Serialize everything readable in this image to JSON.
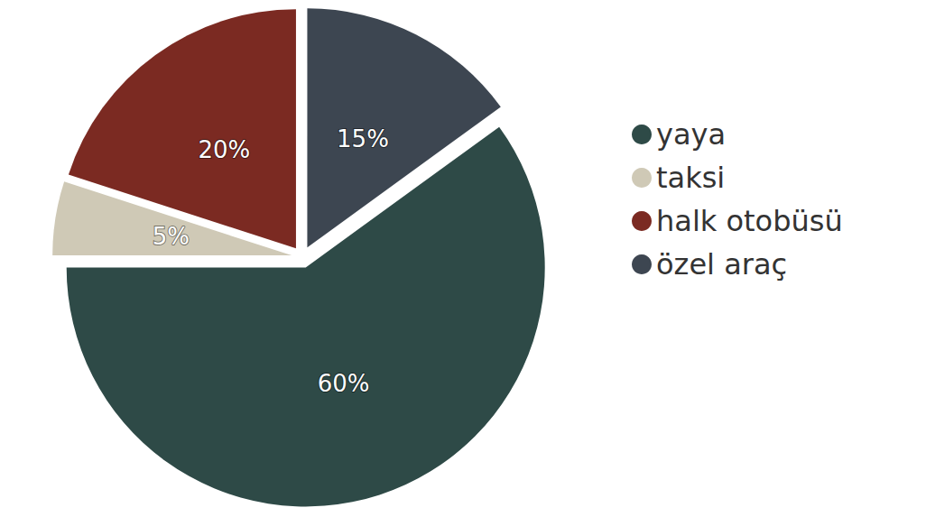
{
  "chart_data": {
    "type": "pie",
    "categories": [
      "yaya",
      "taksi",
      "halk otobüsü",
      "özel araç"
    ],
    "values": [
      60,
      5,
      20,
      15
    ],
    "value_labels": [
      "60%",
      "5%",
      "20%",
      "15%"
    ],
    "colors": [
      "#2e4a47",
      "#cfc9b6",
      "#7b2a22",
      "#3d4651"
    ],
    "legend": "right",
    "data_labels": true
  }
}
